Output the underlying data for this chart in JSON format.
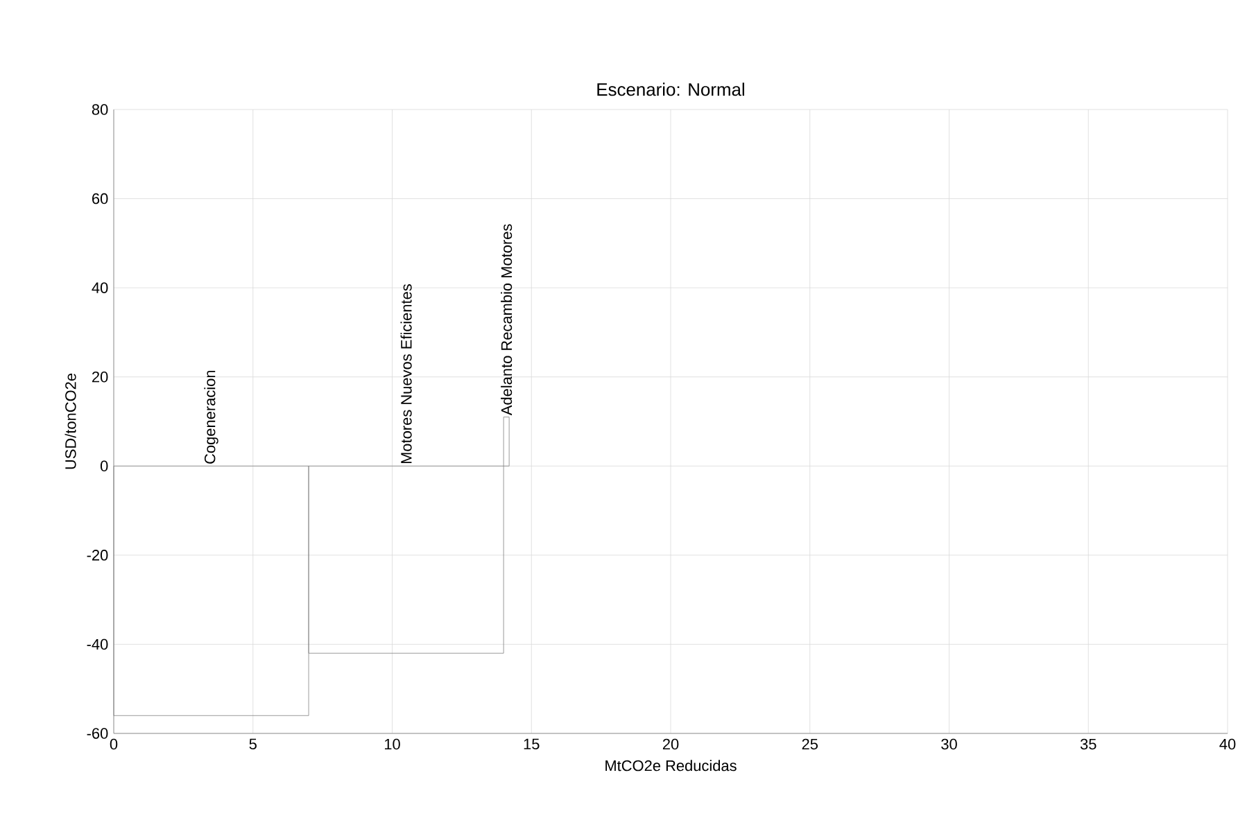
{
  "chart_data": {
    "type": "histogram",
    "title": "Escenario: Normal",
    "xlabel": "MtCO2e Reducidas",
    "ylabel": "USD/tonCO2e",
    "bins": [
      0,
      7,
      14,
      14.2
    ],
    "values": [
      -56,
      -42,
      11
    ],
    "color": "#808080",
    "xlim": [
      0,
      40
    ],
    "xticks": [
      0,
      5,
      10,
      15,
      20,
      25,
      30,
      35,
      40
    ],
    "ylim": [
      -60,
      80
    ],
    "yticks": [
      -60,
      -40,
      -20,
      0,
      20,
      40,
      60,
      80
    ],
    "grid": true,
    "annotations": [
      "Cogeneracion",
      "Motores Nuevos Eficientes",
      "Adelanto Recambio Motores"
    ]
  }
}
